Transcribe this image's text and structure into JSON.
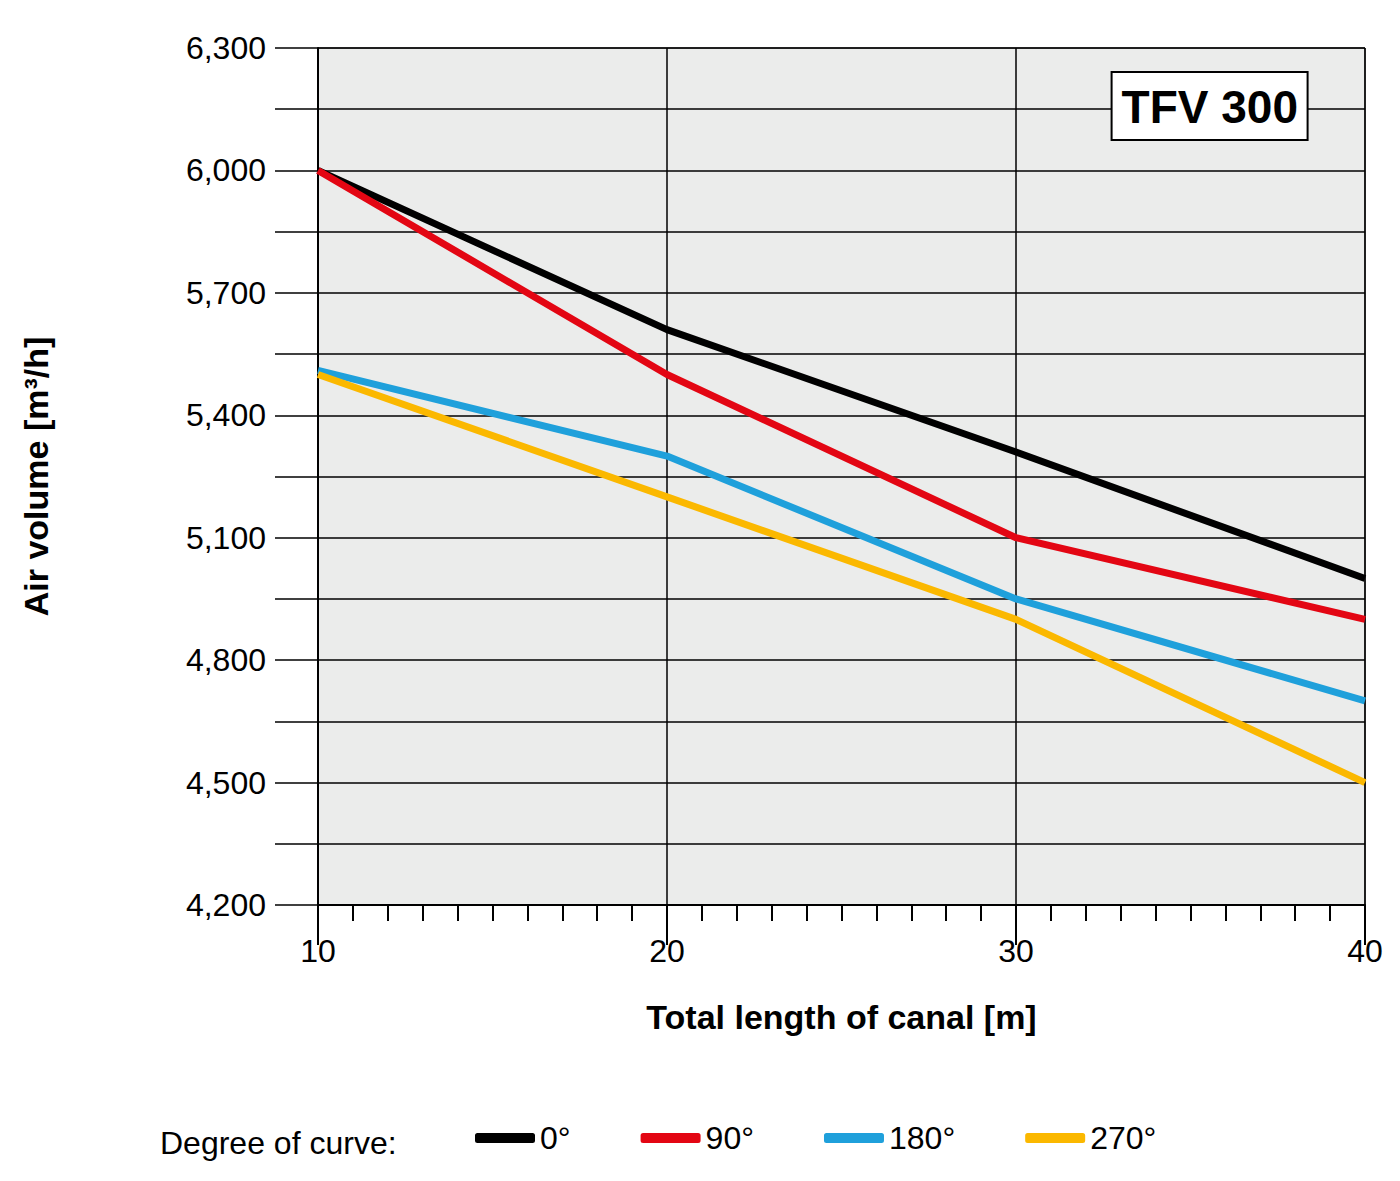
{
  "chart_data": {
    "type": "line",
    "title": "TFV 300",
    "x_label": "Total length of canal [m]",
    "y_label": "Air volume [m³/h]",
    "legend_title": "Degree of curve:",
    "x": [
      10,
      20,
      30,
      40
    ],
    "series": [
      {
        "name": "0°",
        "color": "#000000",
        "values": [
          6000,
          5610,
          5310,
          5000
        ]
      },
      {
        "name": "90°",
        "color": "#e30613",
        "values": [
          6000,
          5500,
          5100,
          4900
        ]
      },
      {
        "name": "180°",
        "color": "#1fa0db",
        "values": [
          5510,
          5300,
          4950,
          4700
        ]
      },
      {
        "name": "270°",
        "color": "#fbb800",
        "values": [
          5500,
          5200,
          4900,
          4500
        ]
      }
    ],
    "xlim": [
      10,
      40
    ],
    "xticks": [
      10,
      20,
      30,
      40
    ],
    "ylim": [
      4200,
      6300
    ],
    "yticks": [
      {
        "value": 4200,
        "label": "4,200"
      },
      {
        "value": 4500,
        "label": "4,500"
      },
      {
        "value": 4800,
        "label": "4,800"
      },
      {
        "value": 5100,
        "label": "5,100"
      },
      {
        "value": 5400,
        "label": "5,400"
      },
      {
        "value": 5700,
        "label": "5,700"
      },
      {
        "value": 6000,
        "label": "6,000"
      },
      {
        "value": 6300,
        "label": "6,300"
      }
    ],
    "grid": true,
    "legend": "bottom"
  }
}
